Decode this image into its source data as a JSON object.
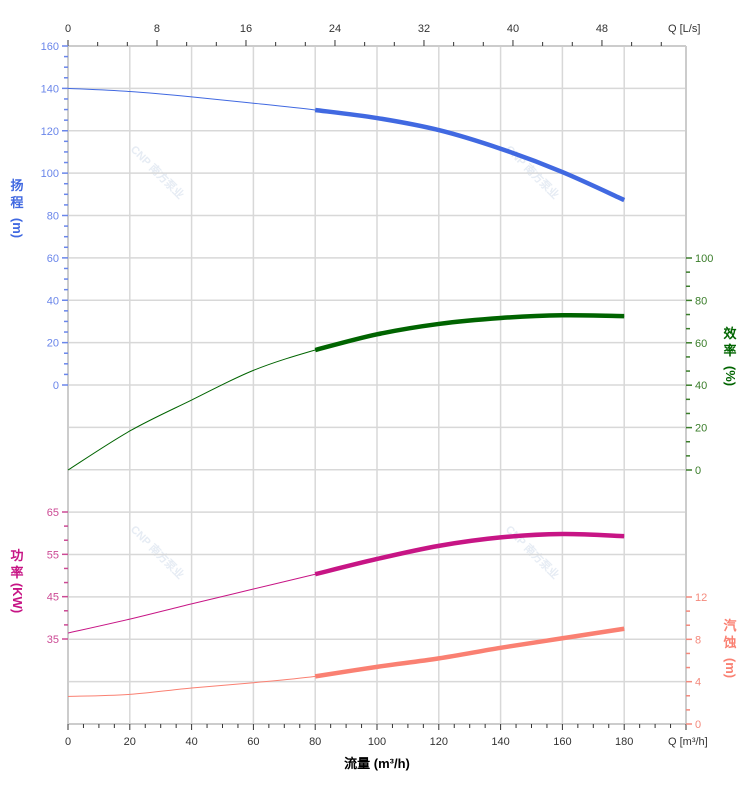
{
  "chart_data": {
    "type": "line",
    "x": [
      0,
      20,
      40,
      60,
      80,
      100,
      120,
      140,
      160,
      180
    ],
    "xlabel": "流量 (m³/h)",
    "x_unit_label": "Q [m³/h]",
    "xlim": [
      0,
      200
    ],
    "x_ticks": [
      0,
      20,
      40,
      60,
      80,
      100,
      120,
      140,
      160,
      180
    ],
    "top_axis": {
      "unit_label": "Q [L/s]",
      "ticks": [
        0,
        8,
        16,
        24,
        32,
        40,
        48
      ]
    },
    "operating_range": [
      80,
      180
    ],
    "grid": true,
    "series": [
      {
        "name": "扬程",
        "axis_label": [
          "扬",
          "程",
          "(m)"
        ],
        "color": "#4169e1",
        "tick_color": "#6a86ea",
        "values": [
          140,
          138.5,
          136,
          133,
          129.8,
          126,
          120.3,
          111.5,
          100.5,
          87.3
        ],
        "ylim": [
          0,
          160
        ],
        "ticks": [
          0,
          20,
          40,
          60,
          80,
          100,
          120,
          140,
          160
        ]
      },
      {
        "name": "效率",
        "axis_label": [
          "效",
          "率",
          "(%)"
        ],
        "color": "#006400",
        "tick_color": "#3a7d2a",
        "values": [
          0,
          18.4,
          33,
          47,
          56.6,
          64,
          68.9,
          71.7,
          73,
          72.6
        ],
        "ylim": [
          0,
          100
        ],
        "ticks": [
          0,
          20,
          40,
          60,
          80,
          100
        ]
      },
      {
        "name": "功率",
        "axis_label": [
          "功",
          "率",
          "(KW)"
        ],
        "color": "#c71585",
        "tick_color": "#cc4a95",
        "values": [
          36.4,
          39.7,
          43.3,
          46.8,
          50.3,
          53.9,
          57,
          59,
          59.8,
          59.3
        ],
        "ylim": [
          35,
          65
        ],
        "ticks": [
          35,
          45,
          55,
          65
        ]
      },
      {
        "name": "汽蚀",
        "axis_label": [
          "汽",
          "蚀",
          "(m)"
        ],
        "color": "#fa8072",
        "tick_color": "#f4897c",
        "values": [
          2.6,
          2.8,
          3.4,
          3.9,
          4.5,
          5.4,
          6.2,
          7.2,
          8.1,
          9.0
        ],
        "ylim": [
          0,
          12
        ],
        "ticks": [
          0,
          4,
          8,
          12
        ]
      }
    ],
    "watermark": "CNP 南方泵业"
  }
}
